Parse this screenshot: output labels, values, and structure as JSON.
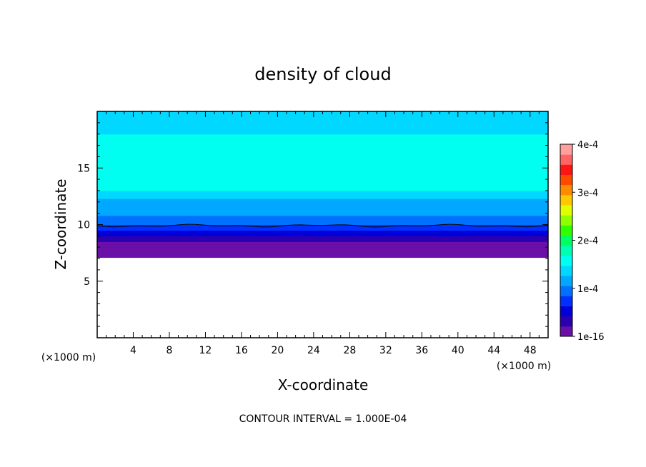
{
  "chart_data": {
    "type": "heatmap",
    "title": "density of cloud",
    "xlabel": "X-coordinate",
    "ylabel": "Z-coordinate",
    "x_unit_label": "(×1000 m)",
    "y_unit_label": "(×1000 m)",
    "xlim": [
      0,
      50
    ],
    "ylim": [
      0,
      20
    ],
    "x_ticks": [
      4,
      8,
      12,
      16,
      20,
      24,
      28,
      32,
      36,
      40,
      44,
      48
    ],
    "x_tick_labels": [
      "4",
      "8",
      "12",
      "16",
      "20",
      "24",
      "28",
      "32",
      "36",
      "40",
      "44",
      "48"
    ],
    "y_ticks": [
      5,
      10,
      15
    ],
    "y_tick_labels": [
      "5",
      "10",
      "15"
    ],
    "colorbar": {
      "min": 1e-16,
      "max": 0.0004,
      "ticks": [
        1e-16,
        0.0001,
        0.0002,
        0.0003,
        0.0004
      ],
      "tick_labels": [
        "1e-16",
        "1e-4",
        "2e-4",
        "3e-4",
        "4e-4"
      ],
      "colors": [
        "#6a0fa8",
        "#2b00b0",
        "#0000d8",
        "#0030ff",
        "#0070ff",
        "#00a8ff",
        "#00d8ff",
        "#00fff0",
        "#00ffb0",
        "#00ff60",
        "#30ff00",
        "#90ff00",
        "#e0ff00",
        "#ffc800",
        "#ff8c00",
        "#ff4b00",
        "#ff1414",
        "#ff6464",
        "#ffa0a0"
      ]
    },
    "profile": [
      {
        "z": 7.1,
        "value": 1e-16
      },
      {
        "z": 7.6,
        "value": 7e-06
      },
      {
        "z": 8.0,
        "value": 2e-05
      },
      {
        "z": 8.5,
        "value": 4e-05
      },
      {
        "z": 9.0,
        "value": 6e-05
      },
      {
        "z": 9.5,
        "value": 8e-05
      },
      {
        "z": 10.0,
        "value": 0.0001
      },
      {
        "z": 10.8,
        "value": 0.00011
      },
      {
        "z": 11.5,
        "value": 0.00012
      },
      {
        "z": 12.3,
        "value": 0.000135
      },
      {
        "z": 13.0,
        "value": 0.00015
      },
      {
        "z": 14.0,
        "value": 0.00016
      },
      {
        "z": 15.0,
        "value": 0.000165
      },
      {
        "z": 16.0,
        "value": 0.00016
      },
      {
        "z": 17.0,
        "value": 0.00015
      },
      {
        "z": 18.0,
        "value": 0.00014
      },
      {
        "z": 19.0,
        "value": 0.00013
      },
      {
        "z": 20.0,
        "value": 0.000125
      }
    ],
    "contour_line": {
      "level": 0.0001,
      "z_mean": 9.9
    },
    "grid": false,
    "legend": "colorbar-right"
  },
  "footer": {
    "contour_interval": "CONTOUR INTERVAL = 1.000E-04"
  }
}
